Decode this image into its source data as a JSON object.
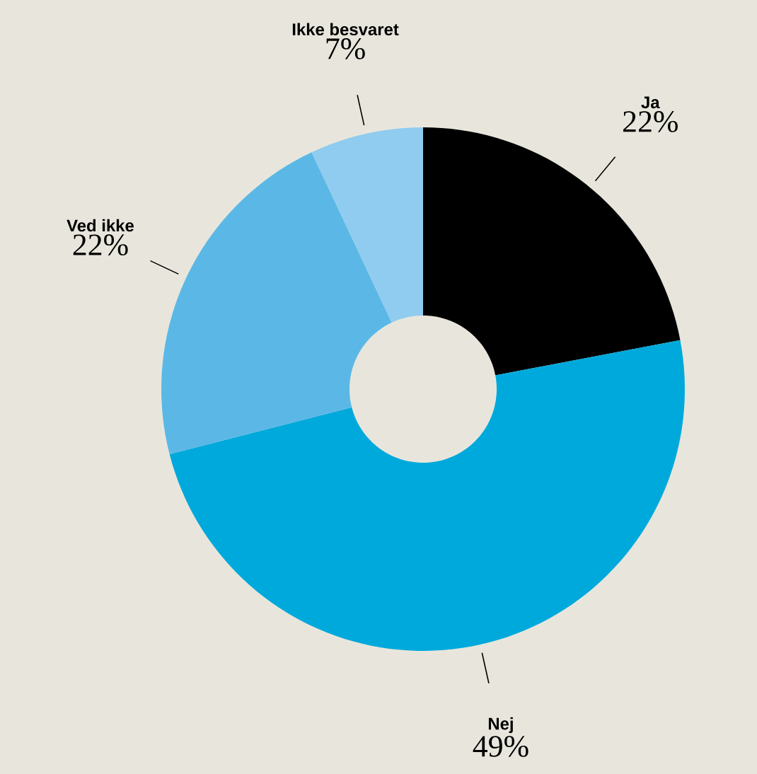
{
  "chart_data": {
    "type": "donut",
    "categories": [
      "Ja",
      "Nej",
      "Ved ikke",
      "Ikke besvaret"
    ],
    "values": [
      22,
      49,
      22,
      7
    ],
    "value_labels": [
      "22%",
      "49%",
      "22%",
      "7%"
    ],
    "colors": [
      "#000000",
      "#00a9dc",
      "#5bb8e6",
      "#90ccf0"
    ]
  }
}
